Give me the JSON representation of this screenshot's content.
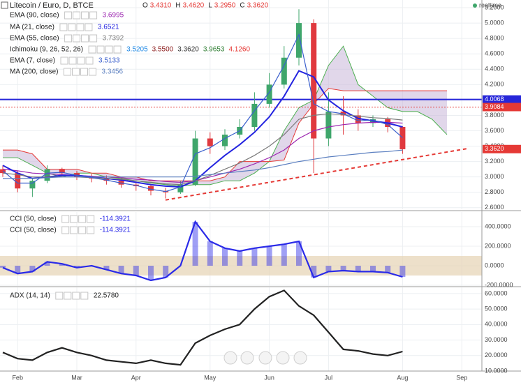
{
  "chart_data": [
    {
      "type": "candlestick",
      "title": "Litecoin / Euro, D, BTCE",
      "ohlc": [
        {
          "name": "O",
          "value": 3.431,
          "label": "3.4310"
        },
        {
          "name": "H",
          "value": 3.462,
          "label": "3.4620"
        },
        {
          "name": "L",
          "value": 3.295,
          "label": "3.2950"
        },
        {
          "name": "C",
          "value": 3.362,
          "label": "3.3620"
        }
      ],
      "open": [
        3.1,
        3.05,
        2.85,
        2.95,
        3.1,
        3.05,
        3.0,
        2.98,
        2.95,
        2.9,
        2.88,
        2.82,
        2.8,
        2.9,
        3.5,
        3.4,
        3.55,
        3.65,
        3.95,
        4.2,
        4.55,
        5.0,
        3.5,
        3.85,
        3.8,
        3.7,
        3.75,
        3.65,
        null,
        null,
        null,
        null
      ],
      "high": [
        3.15,
        3.08,
        2.98,
        3.15,
        3.12,
        3.08,
        3.04,
        3.02,
        2.98,
        2.94,
        2.9,
        2.86,
        2.95,
        3.6,
        3.58,
        3.62,
        3.75,
        4.1,
        4.35,
        4.7,
        5.18,
        5.05,
        4.1,
        4.05,
        3.88,
        3.8,
        3.78,
        3.66,
        null,
        null,
        null,
        null
      ],
      "low": [
        3.0,
        2.8,
        2.74,
        2.92,
        3.0,
        2.96,
        2.93,
        2.9,
        2.86,
        2.82,
        2.76,
        2.72,
        2.78,
        2.88,
        3.3,
        3.35,
        3.5,
        3.6,
        3.9,
        4.15,
        4.45,
        3.05,
        3.4,
        3.55,
        3.6,
        3.65,
        3.58,
        3.3,
        null,
        null,
        null,
        null
      ],
      "close": [
        3.05,
        2.85,
        2.95,
        3.1,
        3.05,
        3.0,
        2.98,
        2.95,
        2.9,
        2.88,
        2.82,
        2.8,
        2.9,
        3.5,
        3.4,
        3.55,
        3.65,
        3.95,
        4.2,
        4.55,
        5.0,
        3.5,
        3.85,
        3.8,
        3.7,
        3.75,
        3.65,
        3.36,
        null,
        null,
        null,
        null
      ],
      "up_color": "#3fa66b",
      "down_color": "#e0393e",
      "series": [
        {
          "name": "EMA (90, close)",
          "color": "#9c27b0",
          "legend_value": 3.6995,
          "values": [
            3.1,
            3.08,
            3.05,
            3.04,
            3.03,
            3.02,
            3.01,
            3.0,
            2.99,
            2.97,
            2.96,
            2.94,
            2.93,
            2.95,
            3.0,
            3.05,
            3.1,
            3.17,
            3.25,
            3.35,
            3.5,
            3.6,
            3.65,
            3.68,
            3.7,
            3.71,
            3.71,
            3.7,
            null,
            null,
            null,
            null
          ]
        },
        {
          "name": "MA (21, close)",
          "color": "#2424e0",
          "legend_value": 3.6521,
          "values": [
            3.15,
            3.05,
            2.98,
            3.0,
            3.02,
            3.02,
            3.0,
            2.98,
            2.96,
            2.93,
            2.9,
            2.88,
            2.87,
            2.95,
            3.12,
            3.28,
            3.42,
            3.58,
            3.78,
            4.05,
            4.38,
            4.3,
            4.0,
            3.86,
            3.76,
            3.73,
            3.7,
            3.65,
            null,
            null,
            null,
            null
          ]
        },
        {
          "name": "EMA (55, close)",
          "color": "#7a7a7a",
          "legend_value": 3.7392,
          "values": [
            3.05,
            3.03,
            3.0,
            3.0,
            3.0,
            3.0,
            2.99,
            2.98,
            2.97,
            2.95,
            2.93,
            2.91,
            2.9,
            2.95,
            3.02,
            3.1,
            3.18,
            3.28,
            3.4,
            3.55,
            3.75,
            3.8,
            3.82,
            3.81,
            3.79,
            3.77,
            3.76,
            3.74,
            null,
            null,
            null,
            null
          ]
        },
        {
          "name": "EMA (7, close)",
          "color": "#3a5fcd",
          "legend_value": 3.5133,
          "values": [
            3.08,
            2.92,
            2.92,
            3.05,
            3.06,
            3.02,
            2.99,
            2.96,
            2.92,
            2.89,
            2.84,
            2.81,
            2.87,
            3.3,
            3.38,
            3.5,
            3.6,
            3.86,
            4.1,
            4.45,
            4.85,
            3.95,
            3.85,
            3.82,
            3.73,
            3.74,
            3.68,
            3.51,
            null,
            null,
            null,
            null
          ]
        },
        {
          "name": "MA (200, close)",
          "color": "#5b7fc0",
          "legend_value": 3.3456,
          "values": [
            2.98,
            2.98,
            2.98,
            2.99,
            3.0,
            3.0,
            3.0,
            3.0,
            3.0,
            3.0,
            3.0,
            3.0,
            3.0,
            3.01,
            3.03,
            3.05,
            3.07,
            3.09,
            3.12,
            3.16,
            3.2,
            3.23,
            3.26,
            3.28,
            3.3,
            3.32,
            3.33,
            3.35,
            null,
            null,
            null,
            null
          ]
        }
      ],
      "ichimoku": {
        "name": "Ichimoku (9, 26, 52, 26)",
        "legend_values": [
          3.5205,
          {
            "value": 3.55,
            "label": "3.5500"
          },
          {
            "value": 3.362,
            "label": "3.3620"
          },
          3.9653,
          {
            "value": 4.126,
            "label": "4.1260"
          }
        ],
        "legend_colors": [
          "#1e88e5",
          "#8b1a1a",
          "#333333",
          "#2e7d32",
          "#e53935"
        ],
        "span_a": [
          3.25,
          3.25,
          3.15,
          3.05,
          3.0,
          3.05,
          3.05,
          3.0,
          2.98,
          2.95,
          2.92,
          2.9,
          2.88,
          2.9,
          2.9,
          2.95,
          2.95,
          3.05,
          3.2,
          3.6,
          3.9,
          4.0,
          4.45,
          4.7,
          4.2,
          4.05,
          3.9,
          3.85,
          3.85,
          3.75,
          3.55,
          null
        ],
        "span_b": [
          3.35,
          3.35,
          3.3,
          3.1,
          3.1,
          3.1,
          3.05,
          3.05,
          3.0,
          3.0,
          2.95,
          2.95,
          2.95,
          2.95,
          2.95,
          3.0,
          3.2,
          3.2,
          3.2,
          3.22,
          3.7,
          3.95,
          4.15,
          4.12,
          4.12,
          4.12,
          4.12,
          4.12,
          4.12,
          4.12,
          4.12,
          null
        ],
        "span_a_color": "#4caf50",
        "span_b_color": "#e53935",
        "cloud_color": "#c9b6d9"
      },
      "hlines": [
        {
          "value": 4.0068,
          "color": "#2626d9"
        },
        {
          "value": 3.9084,
          "color": "#e53935"
        }
      ],
      "last_price": {
        "value": 3.362,
        "label": "3.3620"
      },
      "trendline": {
        "y": [
          2.7,
          3.37
        ],
        "color": "#e53935"
      },
      "realtime": "realtime",
      "ylim": [
        2.58,
        5.3
      ],
      "grid": true,
      "yticks": [
        {
          "value": 2.6,
          "label": "2.6000"
        },
        {
          "value": 2.8,
          "label": "2.8000"
        },
        {
          "value": 3.0,
          "label": "3.0000"
        },
        {
          "value": 3.2,
          "label": "3.2000"
        },
        {
          "value": 3.4,
          "label": "3.4000"
        },
        {
          "value": 3.6,
          "label": "3.6000"
        },
        {
          "value": 3.8,
          "label": "3.8000"
        },
        {
          "value": 4.0,
          "label": "4.0000"
        },
        {
          "value": 4.2,
          "label": "4.2000"
        },
        {
          "value": 4.4,
          "label": "4.4000"
        },
        {
          "value": 4.6,
          "label": "4.6000"
        },
        {
          "value": 4.8,
          "label": "4.8000"
        },
        {
          "value": 5.0,
          "label": "5.0000"
        },
        {
          "value": 5.2,
          "label": "5.2000"
        }
      ]
    },
    {
      "type": "line",
      "histogram": true,
      "series": [
        {
          "name": "CCI (50, close)",
          "color": "#2a2ae8",
          "legend_value": -114.3921,
          "values": [
            -20,
            -80,
            -60,
            40,
            20,
            -20,
            0,
            -40,
            -80,
            -100,
            -150,
            -120,
            0,
            450,
            250,
            180,
            150,
            180,
            200,
            220,
            250,
            -120,
            -60,
            -50,
            -60,
            -60,
            -70,
            -114,
            null,
            null,
            null,
            null
          ]
        },
        {
          "name": "CCI (50, close)",
          "color": "#2a2ae8",
          "legend_value": -114.3921,
          "values": [
            -20,
            -80,
            -60,
            40,
            20,
            -20,
            0,
            -40,
            -80,
            -100,
            -150,
            -120,
            0,
            450,
            250,
            180,
            150,
            180,
            200,
            220,
            250,
            -120,
            -60,
            -50,
            -60,
            -60,
            -70,
            -114,
            null,
            null,
            null,
            null
          ]
        }
      ],
      "band": [
        -100,
        100
      ],
      "band_color": "#e6d3b3",
      "ylim": [
        -207,
        550
      ],
      "grid": true,
      "yticks": [
        {
          "value": -200,
          "label": "-200.0000"
        },
        {
          "value": 0,
          "label": "0.0000"
        },
        {
          "value": 200,
          "label": "200.0000"
        },
        {
          "value": 400,
          "label": "400.0000"
        }
      ]
    },
    {
      "type": "line",
      "series": [
        {
          "name": "ADX (14, 14)",
          "color": "#222222",
          "legend_value": {
            "value": 22.578,
            "label": "22.5780"
          },
          "values": [
            22,
            18,
            17,
            22,
            25,
            22,
            20,
            17,
            16,
            15,
            17,
            15,
            14,
            28,
            33,
            37,
            40,
            50,
            58,
            62,
            52,
            46,
            35,
            24,
            23,
            21,
            20,
            22.6,
            null,
            null,
            null,
            null
          ]
        }
      ],
      "categories": [
        null,
        "Feb",
        null,
        null,
        null,
        "Mar",
        null,
        null,
        null,
        "Apr",
        null,
        null,
        null,
        null,
        "May",
        null,
        null,
        null,
        "Jun",
        null,
        null,
        null,
        "Jul",
        null,
        null,
        null,
        null,
        "Aug",
        null,
        null,
        null,
        "Sep"
      ],
      "ylim": [
        10,
        64
      ],
      "grid": true,
      "yticks": [
        {
          "value": 10,
          "label": "10.0000"
        },
        {
          "value": 20,
          "label": "20.0000"
        },
        {
          "value": 30,
          "label": "30.0000"
        },
        {
          "value": 40,
          "label": "40.0000"
        },
        {
          "value": 50,
          "label": "50.0000"
        },
        {
          "value": 60,
          "label": "60.0000"
        }
      ]
    }
  ]
}
